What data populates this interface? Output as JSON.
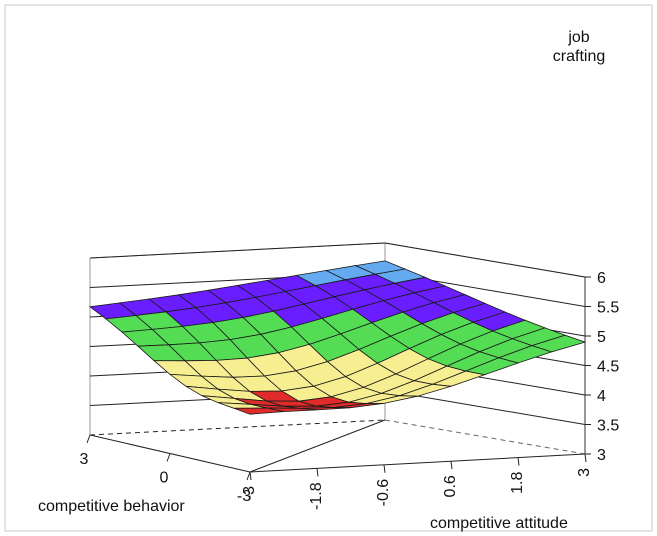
{
  "chart_data": {
    "type": "surface3d",
    "z_axis": {
      "label_lines": [
        "job",
        "crafting"
      ],
      "ticks": [
        "3",
        "3.5",
        "4",
        "4.5",
        "5",
        "5.5",
        "6"
      ],
      "range": [
        3,
        6
      ]
    },
    "x_axis": {
      "label": "competitive attitude",
      "ticks": [
        "-3",
        "-1.8",
        "-0.6",
        "0.6",
        "1.8",
        "3"
      ],
      "range": [
        -3,
        3
      ]
    },
    "y_axis": {
      "label": "competitive behavior",
      "ticks": [
        "3",
        "0",
        "-3"
      ],
      "range": [
        -3,
        3
      ]
    },
    "grid": true,
    "color_bands": [
      {
        "from": 3.5,
        "to": 4.0,
        "color": "#e02b2b"
      },
      {
        "from": 4.0,
        "to": 4.5,
        "color": "#f6ee90"
      },
      {
        "from": 4.5,
        "to": 5.0,
        "color": "#55dc55"
      },
      {
        "from": 5.0,
        "to": 5.5,
        "color": "#6a1eff"
      },
      {
        "from": 5.5,
        "to": 6.0,
        "color": "#64aaf0"
      }
    ],
    "surface": {
      "competitive_attitude": [
        -3,
        -2.4,
        -1.8,
        -1.2,
        -0.6,
        0,
        0.6,
        1.2,
        1.8,
        2.4,
        3
      ],
      "competitive_behavior": [
        3,
        2.4,
        1.8,
        1.2,
        0.6,
        0,
        -0.6,
        -1.2,
        -1.8,
        -2.4,
        -3
      ],
      "job_crafting_corners": {
        "attitude_-3_behavior_3": 5.2,
        "attitude_3_behavior_3": 5.7,
        "attitude_-3_behavior_-3": 4.05,
        "attitude_3_behavior_-3": 4.95
      },
      "minimum_job_crafting": 3.9
    }
  }
}
